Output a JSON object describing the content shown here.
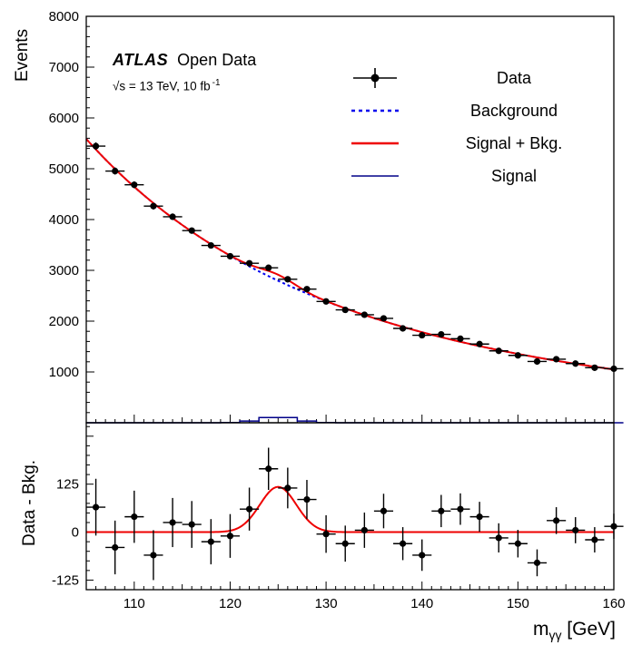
{
  "annotations": {
    "experiment": "ATLAS",
    "dataset": "Open Data",
    "lumi_prefix": "√s = 13 TeV, 10 fb",
    "lumi_sup": "-1"
  },
  "chart_data": {
    "type": "scatter",
    "title": "",
    "xlabel": "m_γγ [GeV]",
    "xlabel_parts": {
      "base": "m",
      "sub": "γγ",
      "rest": " [GeV]"
    },
    "xlim": [
      105,
      160
    ],
    "xticks": [
      110,
      120,
      130,
      140,
      150,
      160
    ],
    "x_minor_step": 1,
    "bin_half_width": 1,
    "x": [
      106,
      108,
      110,
      112,
      114,
      116,
      118,
      120,
      122,
      124,
      126,
      128,
      130,
      132,
      134,
      136,
      138,
      140,
      142,
      144,
      146,
      148,
      150,
      152,
      154,
      156,
      158,
      160
    ],
    "main_panel": {
      "ylabel": "Events",
      "ylim": [
        0,
        8000
      ],
      "yticks": [
        1000,
        2000,
        3000,
        4000,
        5000,
        6000,
        7000,
        8000
      ],
      "y_minor_step": 200,
      "data": [
        5445,
        4955,
        4684,
        4264,
        4055,
        3782,
        3490,
        3278,
        3139,
        3051,
        2824,
        2630,
        2388,
        2222,
        2126,
        2055,
        1857,
        1722,
        1740,
        1654,
        1549,
        1415,
        1326,
        1206,
        1251,
        1165,
        1083,
        1064
      ],
      "data_err": [
        74,
        70,
        68,
        65,
        64,
        61,
        59,
        57,
        56,
        55,
        53,
        51,
        49,
        47,
        46,
        45,
        43,
        41,
        42,
        41,
        39,
        38,
        36,
        35,
        35,
        34,
        33,
        33
      ],
      "background_curve": [
        5380,
        4995,
        4644,
        4324,
        4030,
        3762,
        3515,
        3288,
        3079,
        2886,
        2709,
        2545,
        2393,
        2252,
        2121,
        2000,
        1887,
        1782,
        1685,
        1594,
        1509,
        1430,
        1356,
        1286,
        1221,
        1160,
        1103,
        1049
      ],
      "bkg_model": {
        "form": "power-law",
        "norm": 5380,
        "x0": 106,
        "power": 3.97
      },
      "signal_model": {
        "form": "gaussian",
        "mean": 125,
        "sigma": 1.9,
        "amplitude": 118
      }
    },
    "residual_panel": {
      "ylabel": "Data - Bkg.",
      "ylim": [
        -150,
        285
      ],
      "yticks": [
        -125,
        0,
        125
      ],
      "y_minor_step": 25,
      "values": [
        65,
        -40,
        40,
        -60,
        25,
        20,
        -25,
        -10,
        60,
        165,
        115,
        85,
        -5,
        -30,
        5,
        55,
        -30,
        -60,
        55,
        60,
        40,
        -15,
        -30,
        -80,
        30,
        5,
        -20,
        15
      ]
    },
    "legend": [
      {
        "label": "Data",
        "style": "point-with-error-bars"
      },
      {
        "label": "Background",
        "style": "dashed-line"
      },
      {
        "label": "Signal + Bkg.",
        "style": "solid-line"
      },
      {
        "label": "Signal",
        "style": "thin-solid-line"
      }
    ],
    "colors": {
      "data": "#000000",
      "background": "#0000ee",
      "signal_plus_bkg": "#ee0000",
      "signal": "#000088"
    },
    "legend_position": "top-right",
    "grid": false
  }
}
